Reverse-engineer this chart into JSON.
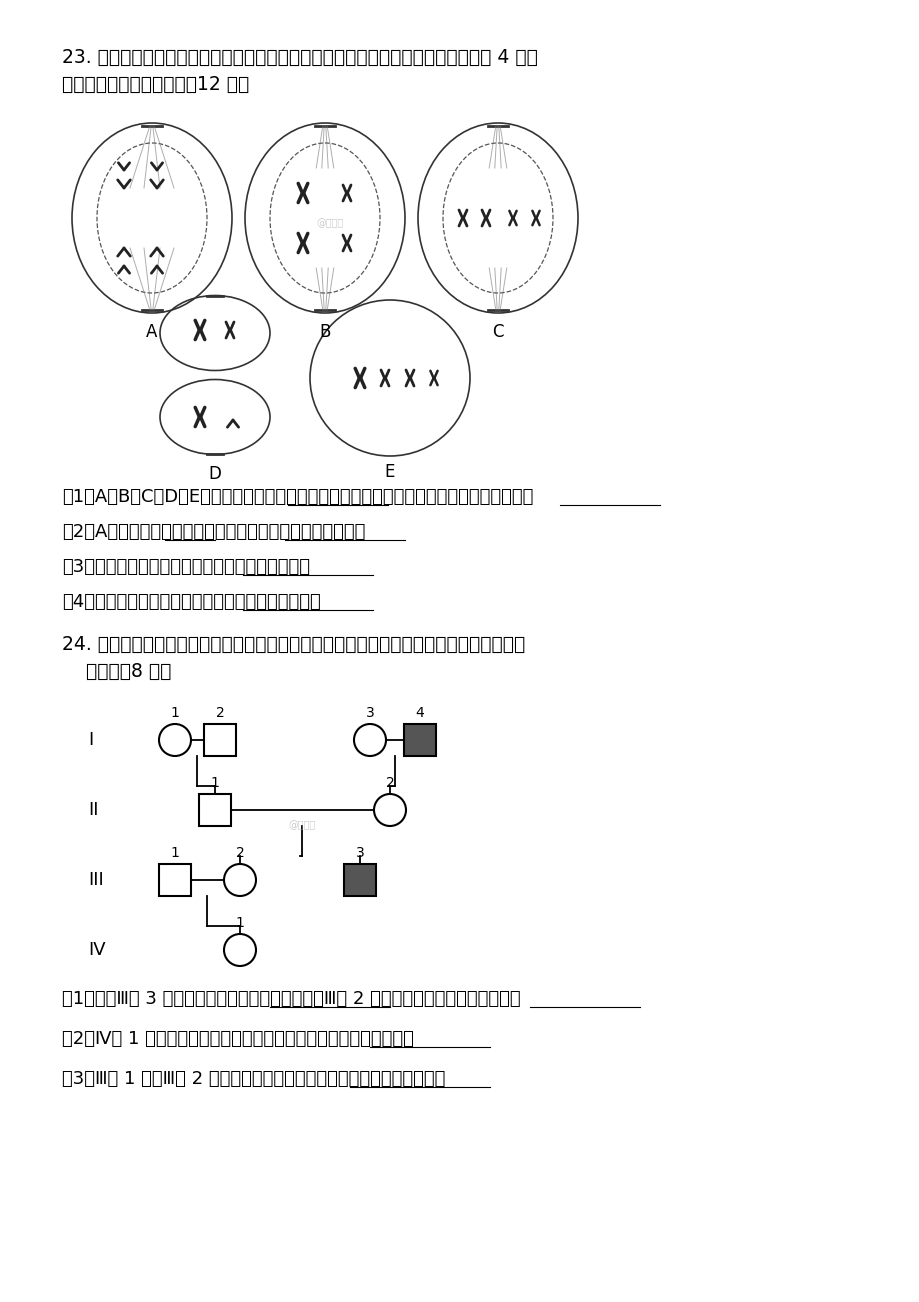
{
  "title_q23": "23. 下图的五个细胞是某种生物不同细胞分裂的示意图，（假设该生物的体细胞只有 4 条染",
  "title_q23_line2": "色体）请回答以下问题：（12 分）",
  "cell_labels": [
    "A",
    "B",
    "C",
    "D",
    "E"
  ],
  "q23_questions": [
    "（1）A、B、C、D、E中属于有丝分裂的是＿＿＿＿＿＿，属于减数分裂的是＿＿＿＿＿＿。",
    "（2）A细胞有＿＿＿＿条染色体，属于＿＿＿＿＿＿＿＿期。",
    "（3）具有同源染色体的细胞有＿＿＿＿＿＿＿＿。",
    "（4）不具有姐妹染色单体的细胞有＿＿＿＿＿＿＿。"
  ],
  "title_q24": "24. 下图是红绿色盲家族遗传图解。图中有阴影的人代表患者，其他人的色觉都正常。据图",
  "title_q24_line2": "    回答：（8 分）",
  "q24_questions": [
    "（1）图中Ⅲ代 3 号的基因型是＿＿＿＿＿＿＿＿，Ⅲ代 2 号的基因型是＿＿＿＿＿＿＿。",
    "（2）Ⅳ代 1 号是红绿色盲基因携带者的可能性是＿＿＿＿＿＿＿＿。",
    "（3）Ⅲ代 1 号和Ⅲ代 2 号生一个色盲孩子的可能性是＿＿＿＿＿＿＿＿。"
  ],
  "bg_color": "#ffffff",
  "text_color": "#000000",
  "watermark": "@正确云"
}
